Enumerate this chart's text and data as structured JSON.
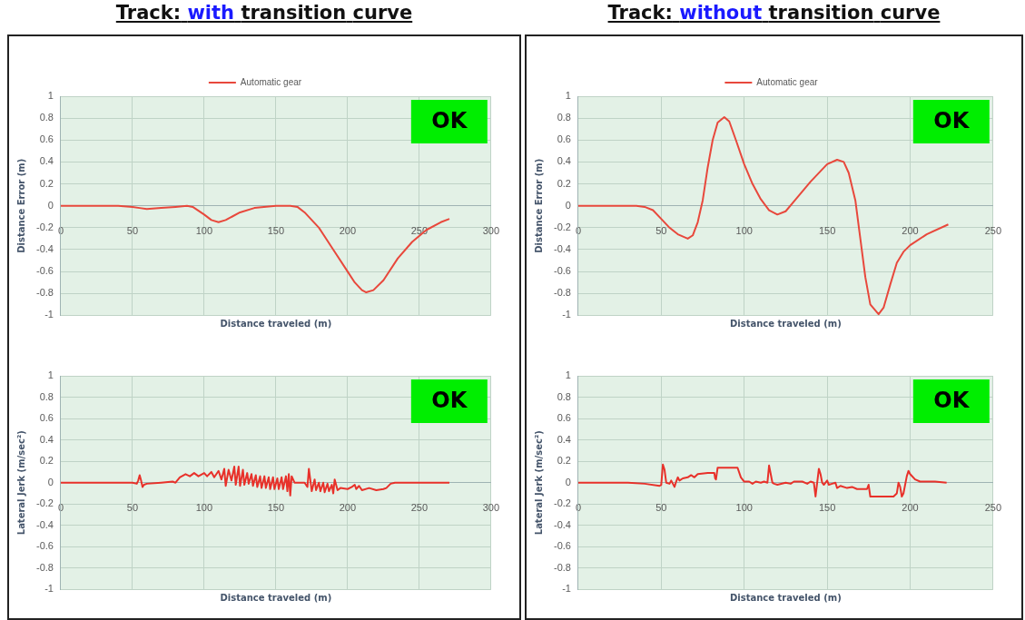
{
  "chart_data": [
    {
      "type": "line",
      "title": "Track: with transition curve",
      "ylabel": "Distance Error (m)",
      "xlabel": "Distance traveled (m)",
      "x": [
        0,
        40,
        50,
        55,
        60,
        70,
        80,
        88,
        92,
        100,
        105,
        110,
        115,
        125,
        135,
        150,
        160,
        165,
        170,
        180,
        190,
        200,
        205,
        210,
        213,
        218,
        225,
        235,
        245,
        255,
        265,
        271
      ],
      "series": [
        {
          "name": "Automatic gear",
          "color": "#e8483c",
          "values": [
            0,
            0,
            -0.01,
            -0.02,
            -0.03,
            -0.02,
            -0.01,
            0,
            -0.01,
            -0.08,
            -0.13,
            -0.15,
            -0.13,
            -0.06,
            -0.02,
            0,
            0,
            -0.01,
            -0.06,
            -0.2,
            -0.4,
            -0.6,
            -0.7,
            -0.77,
            -0.79,
            -0.77,
            -0.68,
            -0.48,
            -0.33,
            -0.22,
            -0.15,
            -0.12
          ]
        }
      ],
      "xlim": [
        0,
        300
      ],
      "xticks": [
        0,
        50,
        100,
        150,
        200,
        250,
        300
      ],
      "ylim": [
        -1,
        1
      ],
      "yticks": [
        -1,
        -0.8,
        -0.6,
        -0.4,
        -0.2,
        0,
        0.2,
        0.4,
        0.6,
        0.8,
        1
      ],
      "grid": true,
      "legend": "top",
      "annotations": [
        "OK"
      ]
    },
    {
      "type": "line",
      "title": "Track: without transition curve",
      "ylabel": "Distance Error (m)",
      "xlabel": "Distance traveled (m)",
      "x": [
        0,
        35,
        40,
        45,
        50,
        55,
        60,
        66,
        69,
        72,
        75,
        78,
        81,
        84,
        88,
        91,
        95,
        100,
        105,
        110,
        115,
        120,
        125,
        130,
        140,
        150,
        156,
        160,
        163,
        167,
        170,
        173,
        176,
        181,
        184,
        188,
        192,
        196,
        200,
        210,
        223
      ],
      "series": [
        {
          "name": "Automatic gear",
          "color": "#e8483c",
          "values": [
            0,
            0,
            -0.01,
            -0.04,
            -0.12,
            -0.2,
            -0.26,
            -0.3,
            -0.27,
            -0.15,
            0.05,
            0.35,
            0.6,
            0.76,
            0.81,
            0.77,
            0.6,
            0.38,
            0.2,
            0.06,
            -0.04,
            -0.08,
            -0.05,
            0.04,
            0.22,
            0.38,
            0.42,
            0.4,
            0.3,
            0.05,
            -0.3,
            -0.65,
            -0.9,
            -0.99,
            -0.93,
            -0.72,
            -0.52,
            -0.42,
            -0.36,
            -0.26,
            -0.17
          ]
        }
      ],
      "xlim": [
        0,
        250
      ],
      "xticks": [
        0,
        50,
        100,
        150,
        200,
        250
      ],
      "ylim": [
        -1,
        1
      ],
      "yticks": [
        -1,
        -0.8,
        -0.6,
        -0.4,
        -0.2,
        0,
        0.2,
        0.4,
        0.6,
        0.8,
        1
      ],
      "grid": true,
      "legend": "top",
      "annotations": [
        "OK"
      ]
    },
    {
      "type": "line",
      "ylabel": "Lateral Jerk (m/sec²)",
      "xlabel": "Distance traveled (m)",
      "x": [
        0,
        50,
        53,
        54,
        55,
        56,
        57,
        58,
        60,
        70,
        78,
        80,
        83,
        87,
        90,
        93,
        96,
        100,
        102,
        105,
        107,
        110,
        112,
        114,
        115,
        117,
        119,
        121,
        122,
        124,
        125,
        127,
        128,
        130,
        131,
        133,
        134,
        136,
        137,
        139,
        140,
        142,
        143,
        145,
        146,
        148,
        149,
        151,
        152,
        154,
        155,
        157,
        158,
        159,
        160,
        161,
        163,
        170,
        172,
        173,
        175,
        177,
        178,
        180,
        181,
        183,
        184,
        186,
        187,
        189,
        190,
        191,
        193,
        195,
        200,
        203,
        205,
        206,
        208,
        210,
        215,
        220,
        225,
        227,
        230,
        233,
        240,
        271
      ],
      "series": [
        {
          "color": "#e8312a",
          "values": [
            0,
            0,
            -0.01,
            0.02,
            0.07,
            0.02,
            -0.04,
            -0.02,
            -0.01,
            0,
            0.01,
            0,
            0.05,
            0.08,
            0.06,
            0.09,
            0.06,
            0.09,
            0.06,
            0.1,
            0.05,
            0.11,
            0.03,
            0.13,
            -0.03,
            0.12,
            0.02,
            0.15,
            -0.02,
            0.15,
            -0.03,
            0.12,
            -0.02,
            0.09,
            -0.01,
            0.08,
            -0.03,
            0.07,
            -0.04,
            0.06,
            -0.05,
            0.06,
            -0.05,
            0.05,
            -0.06,
            0.05,
            -0.06,
            0.04,
            -0.06,
            0.05,
            -0.06,
            0.06,
            -0.08,
            0.08,
            -0.12,
            0.06,
            0,
            0,
            -0.04,
            0.13,
            -0.08,
            0.03,
            -0.07,
            0,
            -0.08,
            0,
            -0.09,
            -0.01,
            -0.08,
            -0.02,
            -0.1,
            0.03,
            -0.07,
            -0.05,
            -0.06,
            -0.04,
            -0.02,
            -0.06,
            -0.03,
            -0.07,
            -0.05,
            -0.07,
            -0.06,
            -0.05,
            -0.01,
            0,
            0,
            0
          ]
        }
      ],
      "xlim": [
        0,
        300
      ],
      "xticks": [
        0,
        50,
        100,
        150,
        200,
        250,
        300
      ],
      "ylim": [
        -1,
        1
      ],
      "yticks": [
        -1,
        -0.8,
        -0.6,
        -0.4,
        -0.2,
        0,
        0.2,
        0.4,
        0.6,
        0.8,
        1
      ],
      "grid": true,
      "annotations": [
        "OK"
      ]
    },
    {
      "type": "line",
      "ylabel": "Lateral Jerk (m/sec²)",
      "xlabel": "Distance traveled (m)",
      "x": [
        0,
        30,
        40,
        49,
        50,
        51,
        52,
        53,
        55,
        56,
        57,
        58,
        59,
        60,
        61,
        63,
        66,
        68,
        70,
        72,
        78,
        82,
        82.5,
        83,
        84,
        96,
        98,
        100,
        103,
        105,
        107,
        110,
        112,
        114,
        115,
        116,
        117,
        118,
        120,
        125,
        128,
        130,
        135,
        138,
        140,
        142,
        143,
        144,
        145,
        146,
        147,
        148,
        150,
        151,
        153,
        155,
        156,
        158,
        162,
        165,
        168,
        174,
        175,
        176,
        190,
        192,
        193,
        194,
        195,
        196,
        198,
        199,
        200,
        203,
        206,
        210,
        215,
        222
      ],
      "series": [
        {
          "color": "#e8312a",
          "values": [
            0,
            0,
            -0.01,
            -0.03,
            -0.02,
            0.17,
            0.12,
            0,
            -0.01,
            0.02,
            -0.01,
            -0.04,
            0.01,
            0.05,
            0.02,
            0.04,
            0.05,
            0.07,
            0.05,
            0.08,
            0.09,
            0.09,
            0.04,
            0.03,
            0.14,
            0.14,
            0.05,
            0.01,
            0.01,
            -0.01,
            0.01,
            0,
            0.01,
            0,
            0.16,
            0.08,
            0,
            -0.01,
            -0.02,
            0,
            -0.01,
            0.01,
            0.01,
            -0.01,
            0.01,
            0,
            -0.13,
            0,
            0.13,
            0.08,
            0,
            -0.02,
            0.02,
            -0.02,
            -0.01,
            0,
            -0.05,
            -0.03,
            -0.05,
            -0.04,
            -0.06,
            -0.06,
            -0.02,
            -0.13,
            -0.13,
            -0.1,
            0,
            -0.04,
            -0.13,
            -0.1,
            0.06,
            0.11,
            0.08,
            0.03,
            0.01,
            0.01,
            0.01,
            0
          ]
        }
      ],
      "xlim": [
        0,
        250
      ],
      "xticks": [
        0,
        50,
        100,
        150,
        200,
        250
      ],
      "ylim": [
        -1,
        1
      ],
      "yticks": [
        -1,
        -0.8,
        -0.6,
        -0.4,
        -0.2,
        0,
        0.2,
        0.4,
        0.6,
        0.8,
        1
      ],
      "grid": true,
      "annotations": [
        "OK"
      ]
    }
  ]
}
